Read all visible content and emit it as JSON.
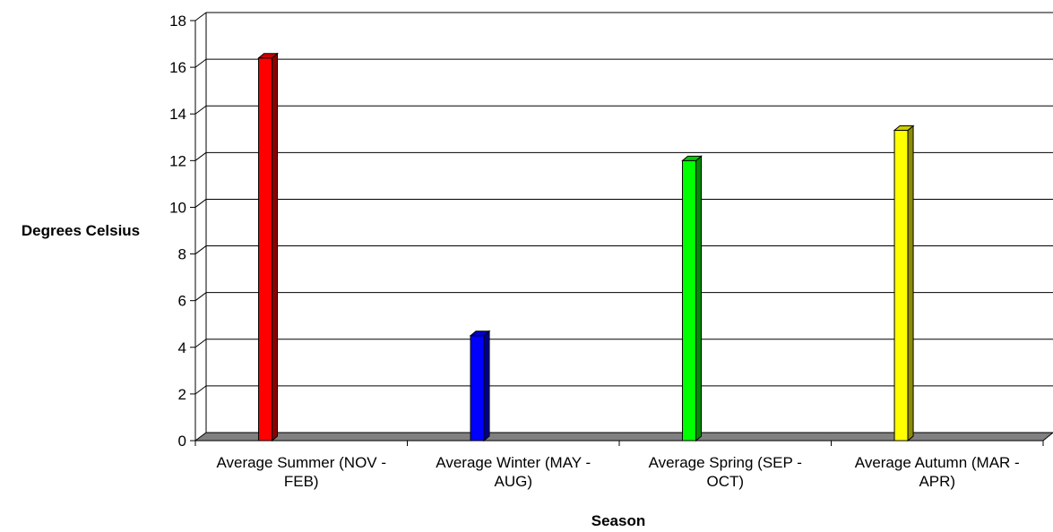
{
  "chart_data": {
    "type": "bar",
    "categories": [
      [
        "Average Summer (NOV -",
        "FEB)"
      ],
      [
        "Average Winter (MAY -",
        "AUG)"
      ],
      [
        "Average Spring (SEP -",
        "OCT)"
      ],
      [
        "Average Autumn (MAR -",
        "APR)"
      ]
    ],
    "values": [
      16.4,
      4.5,
      12.0,
      13.3
    ],
    "colors": [
      "#ff0000",
      "#0000ff",
      "#00ff00",
      "#ffff00"
    ],
    "side_colors": [
      "#8c0000",
      "#00008c",
      "#008c00",
      "#8c8c00"
    ],
    "top_colors": [
      "#cc0000",
      "#0000cc",
      "#00cc00",
      "#cccc00"
    ],
    "title": "",
    "xlabel": "Season",
    "ylabel": "Degrees Celsius",
    "ylim": [
      0,
      18
    ],
    "yticks": [
      0,
      2,
      4,
      6,
      8,
      10,
      12,
      14,
      16,
      18
    ],
    "grid": true,
    "style": "3d-column",
    "floor_color": "#808080"
  }
}
